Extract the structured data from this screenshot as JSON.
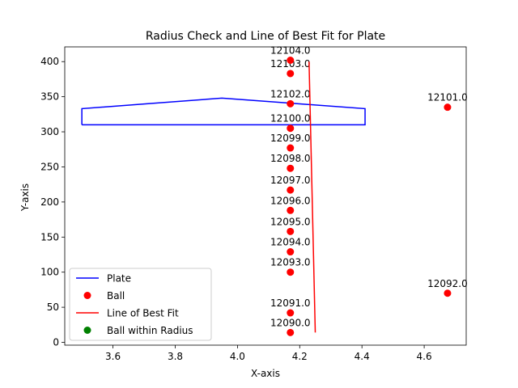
{
  "chart_data": {
    "type": "scatter",
    "title": "Radius Check and Line of Best Fit for Plate",
    "xlabel": "X-axis",
    "ylabel": "Y-axis",
    "xlim": [
      3.445,
      4.735
    ],
    "ylim": [
      -4,
      421
    ],
    "x_ticks": [
      "3.6",
      "3.8",
      "4.0",
      "4.2",
      "4.4",
      "4.6"
    ],
    "y_ticks": [
      "0",
      "50",
      "100",
      "150",
      "200",
      "250",
      "300",
      "350",
      "400"
    ],
    "grid": false,
    "legend_position": "lower-left",
    "legend": [
      {
        "label": "Plate",
        "kind": "line",
        "color": "#0000ff"
      },
      {
        "label": "Ball",
        "kind": "dot",
        "color": "#ff0000"
      },
      {
        "label": "Line of Best Fit",
        "kind": "line",
        "color": "#ff0000"
      },
      {
        "label": "Ball within Radius",
        "kind": "dot",
        "color": "#008000"
      }
    ],
    "plate": {
      "color": "#0000ff",
      "points": [
        [
          3.5,
          310
        ],
        [
          3.5,
          333
        ],
        [
          3.95,
          348
        ],
        [
          4.41,
          333
        ],
        [
          4.41,
          310
        ],
        [
          3.5,
          310
        ]
      ]
    },
    "best_fit_line": {
      "color": "#ff0000",
      "points": [
        [
          4.23,
          400
        ],
        [
          4.25,
          14
        ]
      ]
    },
    "balls": {
      "color": "#ff0000",
      "points": [
        {
          "x": 4.17,
          "y": 14,
          "label": "12090.0"
        },
        {
          "x": 4.17,
          "y": 42,
          "label": "12091.0"
        },
        {
          "x": 4.675,
          "y": 70,
          "label": "12092.0"
        },
        {
          "x": 4.17,
          "y": 100,
          "label": "12093.0"
        },
        {
          "x": 4.17,
          "y": 129,
          "label": "12094.0"
        },
        {
          "x": 4.17,
          "y": 158,
          "label": "12095.0"
        },
        {
          "x": 4.17,
          "y": 188,
          "label": "12096.0"
        },
        {
          "x": 4.17,
          "y": 217,
          "label": "12097.0"
        },
        {
          "x": 4.17,
          "y": 248,
          "label": "12098.0"
        },
        {
          "x": 4.17,
          "y": 277,
          "label": "12099.0"
        },
        {
          "x": 4.17,
          "y": 305,
          "label": "12100.0"
        },
        {
          "x": 4.675,
          "y": 335,
          "label": "12101.0"
        },
        {
          "x": 4.17,
          "y": 340,
          "label": "12102.0"
        },
        {
          "x": 4.17,
          "y": 383,
          "label": "12103.0"
        },
        {
          "x": 4.17,
          "y": 402,
          "label": "12104.0"
        }
      ]
    }
  }
}
